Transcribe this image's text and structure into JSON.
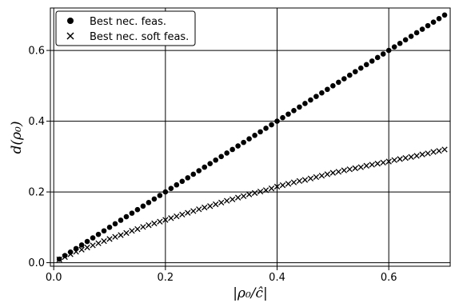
{
  "chart_data": {
    "type": "scatter",
    "title": "",
    "xlabel": "|ρ₀/ĉ|",
    "ylabel": "d(ρ₀)",
    "xlim": [
      -0.006,
      0.71
    ],
    "ylim": [
      -0.01,
      0.72
    ],
    "x_ticks": [
      0.0,
      0.2,
      0.4,
      0.6
    ],
    "x_tick_labels": [
      "0.0",
      "0.2",
      "0.4",
      "0.6"
    ],
    "y_ticks": [
      0.0,
      0.2,
      0.4,
      0.6
    ],
    "y_tick_labels": [
      "0.0",
      "0.2",
      "0.4",
      "0.6"
    ],
    "grid": true,
    "legend_position": "top-left",
    "x": [
      0.01,
      0.02,
      0.03,
      0.04,
      0.05,
      0.06,
      0.07,
      0.08,
      0.09,
      0.1,
      0.11,
      0.12,
      0.13,
      0.14,
      0.15,
      0.16,
      0.17,
      0.18,
      0.19,
      0.2,
      0.21,
      0.22,
      0.23,
      0.24,
      0.25,
      0.26,
      0.27,
      0.28,
      0.29,
      0.3,
      0.31,
      0.32,
      0.33,
      0.34,
      0.35,
      0.36,
      0.37,
      0.38,
      0.39,
      0.4,
      0.41,
      0.42,
      0.43,
      0.44,
      0.45,
      0.46,
      0.47,
      0.48,
      0.49,
      0.5,
      0.51,
      0.52,
      0.53,
      0.54,
      0.55,
      0.56,
      0.57,
      0.58,
      0.59,
      0.6,
      0.61,
      0.62,
      0.63,
      0.64,
      0.65,
      0.66,
      0.67,
      0.68,
      0.69,
      0.7
    ],
    "series": [
      {
        "name": "Best nec. feas.",
        "marker": "circle",
        "color": "#000000",
        "values": [
          0.01,
          0.02,
          0.03,
          0.04,
          0.05,
          0.06,
          0.07,
          0.08,
          0.09,
          0.1,
          0.11,
          0.12,
          0.13,
          0.14,
          0.15,
          0.16,
          0.17,
          0.18,
          0.19,
          0.2,
          0.21,
          0.22,
          0.23,
          0.24,
          0.25,
          0.26,
          0.27,
          0.28,
          0.29,
          0.3,
          0.31,
          0.32,
          0.33,
          0.34,
          0.35,
          0.36,
          0.37,
          0.38,
          0.39,
          0.4,
          0.41,
          0.42,
          0.43,
          0.44,
          0.45,
          0.46,
          0.47,
          0.48,
          0.49,
          0.5,
          0.51,
          0.52,
          0.53,
          0.54,
          0.55,
          0.56,
          0.57,
          0.58,
          0.59,
          0.6,
          0.61,
          0.62,
          0.63,
          0.64,
          0.65,
          0.66,
          0.67,
          0.68,
          0.69,
          0.7
        ]
      },
      {
        "name": "Best nec. soft feas.",
        "marker": "x",
        "color": "#000000",
        "values": [
          0.009,
          0.016,
          0.024,
          0.031,
          0.037,
          0.043,
          0.049,
          0.055,
          0.061,
          0.067,
          0.073,
          0.078,
          0.084,
          0.09,
          0.095,
          0.101,
          0.106,
          0.111,
          0.116,
          0.121,
          0.126,
          0.131,
          0.136,
          0.141,
          0.146,
          0.151,
          0.156,
          0.16,
          0.165,
          0.17,
          0.175,
          0.179,
          0.184,
          0.188,
          0.193,
          0.197,
          0.201,
          0.205,
          0.21,
          0.215,
          0.219,
          0.223,
          0.227,
          0.231,
          0.234,
          0.238,
          0.242,
          0.246,
          0.25,
          0.254,
          0.257,
          0.261,
          0.264,
          0.267,
          0.27,
          0.274,
          0.277,
          0.28,
          0.283,
          0.286,
          0.29,
          0.293,
          0.296,
          0.299,
          0.302,
          0.306,
          0.309,
          0.313,
          0.316,
          0.32
        ]
      }
    ]
  }
}
